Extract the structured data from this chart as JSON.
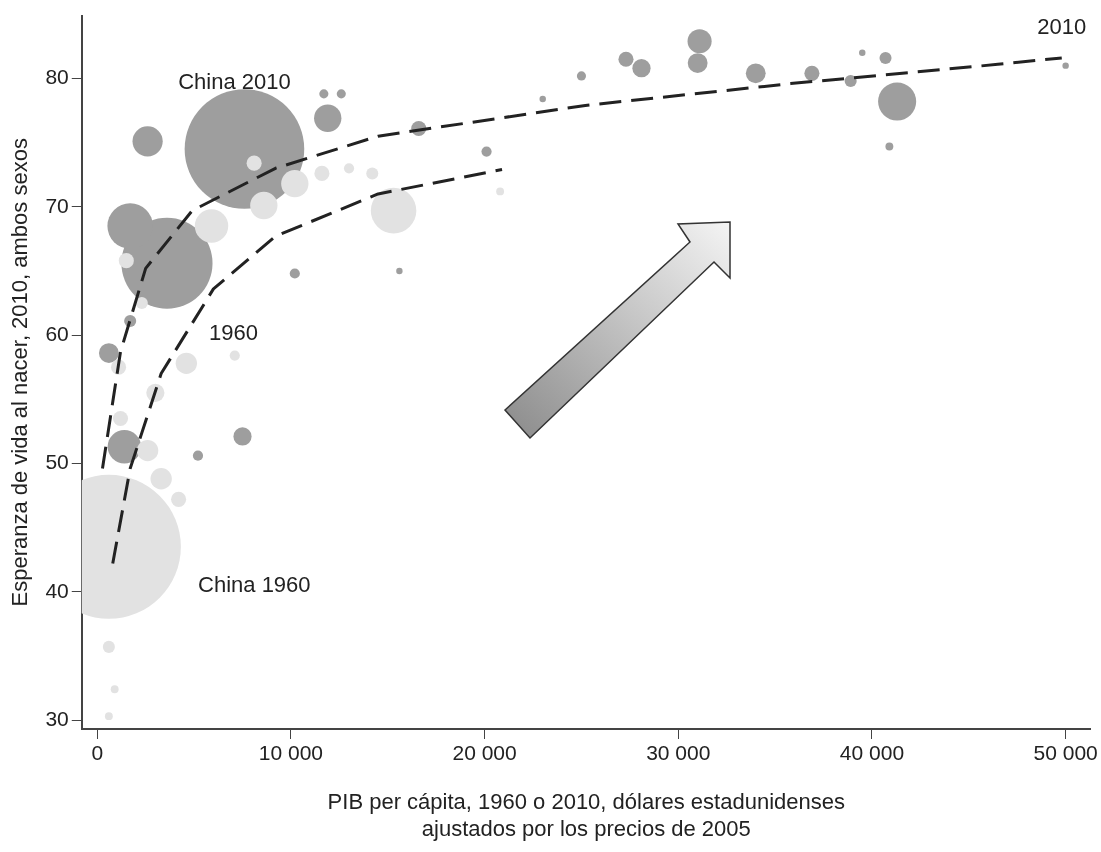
{
  "chart_data": {
    "type": "bubble",
    "xlabel": "PIB per cápita, 1960 o 2010, dólares estadunidenses\najustados por los precios de 2005",
    "ylabel": "Esperanza de vida al nacer, 2010, ambos sexos",
    "xlim": [
      -800,
      51300
    ],
    "ylim": [
      29.3,
      84.9
    ],
    "xticks": [
      0,
      {
        "value": 10000,
        "label": "10 000"
      },
      {
        "value": 20000,
        "label": "20 000"
      },
      {
        "value": 30000,
        "label": "30 000"
      },
      {
        "value": 40000,
        "label": "40 000"
      },
      {
        "value": 50000,
        "label": "50 000"
      }
    ],
    "yticks": [
      30,
      40,
      50,
      60,
      70,
      80
    ],
    "grid": false,
    "legend": false,
    "series": [
      {
        "color": "#e2e2e2",
        "x": [
          600,
          15300,
          5900,
          8600,
          10200,
          11600,
          14200,
          4600,
          7100,
          600,
          900,
          600,
          20800,
          8100,
          1500,
          2300,
          3000,
          1200,
          13000,
          2600,
          1100,
          3300,
          4200
        ],
        "values": [
          43.5,
          69.7,
          68.5,
          70.1,
          71.8,
          72.6,
          72.6,
          57.8,
          58.4,
          35.7,
          32.4,
          30.3,
          71.2,
          73.4,
          65.8,
          62.5,
          55.5,
          53.5,
          73.0,
          51.0,
          57.5,
          48.8,
          47.2
        ],
        "sizes": [
          1,
          0.1,
          0.054,
          0.036,
          0.036,
          0.011,
          0.007,
          0.022,
          0.005,
          0.007,
          0.003,
          0.003,
          0.003,
          0.011,
          0.011,
          0.007,
          0.016,
          0.011,
          0.005,
          0.022,
          0.011,
          0.022,
          0.011
        ]
      },
      {
        "color": "#9e9e9e",
        "x": [
          7600,
          3600,
          1700,
          41300,
          31100,
          31000,
          28100,
          27300,
          34000,
          36900,
          38900,
          40700,
          50000,
          11900,
          16600,
          20100,
          2600,
          600,
          1400,
          7500,
          5200,
          10200,
          15600,
          11700,
          12600,
          23000,
          25000,
          39500,
          40900,
          1700
        ],
        "values": [
          74.5,
          65.6,
          68.5,
          78.2,
          82.9,
          81.2,
          80.8,
          81.5,
          80.4,
          80.4,
          79.8,
          81.6,
          81,
          76.9,
          76.1,
          74.3,
          75.1,
          58.6,
          51.3,
          52.1,
          50.6,
          64.8,
          65,
          78.8,
          78.8,
          78.4,
          80.2,
          82,
          74.7,
          61.1
        ],
        "sizes": [
          0.69,
          0.4,
          0.1,
          0.07,
          0.028,
          0.019,
          0.016,
          0.011,
          0.019,
          0.011,
          0.007,
          0.007,
          0.002,
          0.036,
          0.011,
          0.005,
          0.044,
          0.019,
          0.054,
          0.016,
          0.005,
          0.005,
          0.002,
          0.004,
          0.004,
          0.002,
          0.004,
          0.002,
          0.003,
          0.007
        ]
      },
      {
        "type": "line",
        "name": "2010",
        "color": "#222222",
        "line_style": "dashed",
        "x": [
          270,
          1200,
          2500,
          4900,
          9200,
          14500,
          25200,
          35800,
          46500,
          49800
        ],
        "values": [
          49.6,
          58.7,
          65.2,
          69.7,
          73.0,
          75.5,
          77.9,
          79.6,
          81.1,
          81.6
        ]
      },
      {
        "type": "line",
        "name": "1960",
        "color": "#222222",
        "line_style": "dashed",
        "x": [
          800,
          1700,
          3300,
          6000,
          9200,
          14500,
          20900
        ],
        "values": [
          42.2,
          49.6,
          57.0,
          63.6,
          67.7,
          71.0,
          72.9
        ]
      }
    ],
    "annotations": [
      {
        "text": "China 2010",
        "x": 7600,
        "y": 74.5
      },
      "China 1960"
    ]
  }
}
